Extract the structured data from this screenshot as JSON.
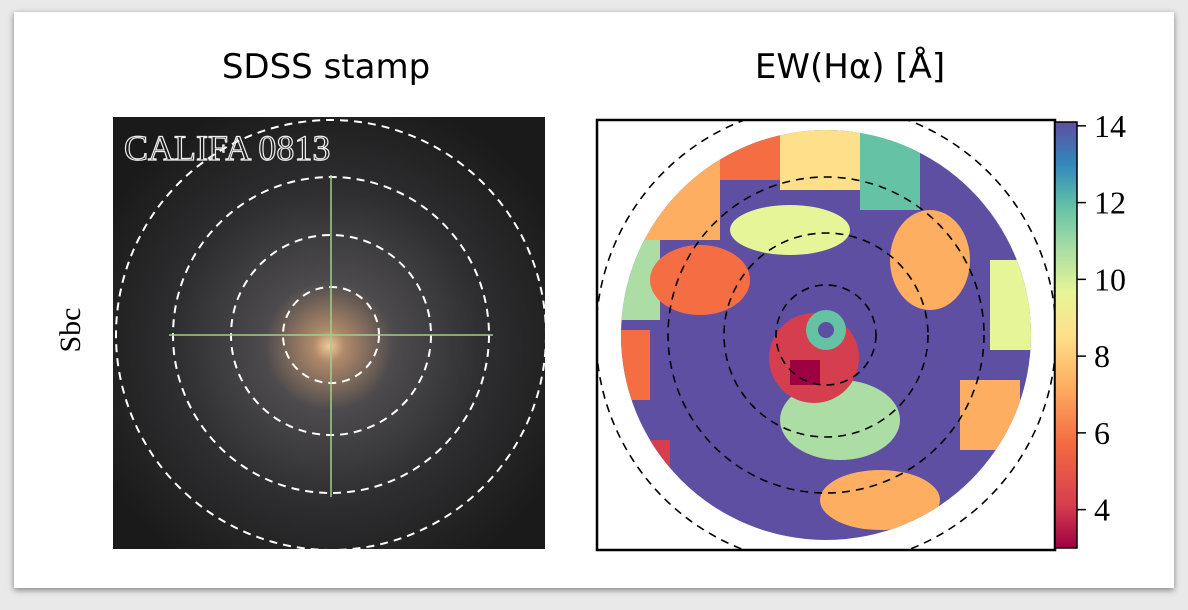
{
  "figure": {
    "row_label": "Sbc",
    "panels": [
      {
        "title": "SDSS stamp",
        "image_label": "CALIFA 0813"
      },
      {
        "title": "EW(Hα)  [Å]",
        "colorbar": {
          "lim": [
            3,
            14.1
          ],
          "ticks": [
            4,
            6,
            8,
            10,
            12,
            14
          ]
        }
      }
    ]
  }
}
